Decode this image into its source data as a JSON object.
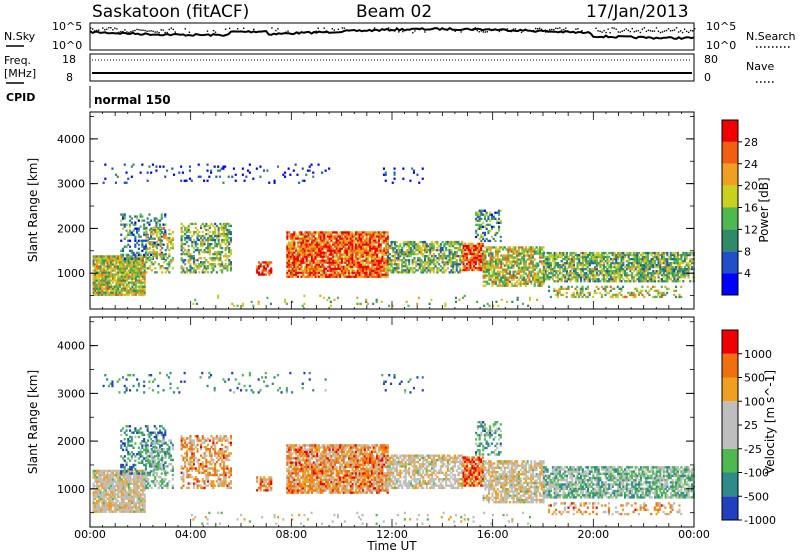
{
  "header": {
    "site": "Saskatoon (fitACF)",
    "beam": "Beam 02",
    "date": "17/Jan/2013"
  },
  "noise_panel": {
    "left_label": "N.Sky",
    "left_ticks": [
      "10^5",
      "10^0"
    ],
    "right_ticks": [
      "10^5",
      "10^0"
    ],
    "right_label": "N.Search"
  },
  "freq_panel": {
    "left_label_line1": "Freq.",
    "left_label_line2": "[MHz]",
    "left_ticks": [
      "18",
      "8"
    ],
    "right_ticks": [
      "80",
      "0"
    ],
    "right_label": "Nave"
  },
  "cpid": {
    "label": "CPID",
    "value": "normal 150"
  },
  "chart_data": [
    {
      "type": "heatmap",
      "name": "power",
      "ylabel": "Slant Range [km]",
      "yticks": [
        "4000",
        "3000",
        "2000",
        "1000"
      ],
      "ylim": [
        200,
        4600
      ],
      "xlim": [
        0,
        24
      ],
      "colorbar": {
        "label": "Power [dB]",
        "ticks": [
          "28",
          "24",
          "20",
          "16",
          "12",
          "8",
          "4"
        ],
        "colors": [
          "#0000ff",
          "#2050c8",
          "#2f8a6a",
          "#4fb84f",
          "#c8d020",
          "#f0a020",
          "#f06010",
          "#f00000"
        ]
      }
    },
    {
      "type": "heatmap",
      "name": "velocity",
      "ylabel": "Slant Range [km]",
      "yticks": [
        "4000",
        "3000",
        "2000",
        "1000"
      ],
      "ylim": [
        200,
        4600
      ],
      "xlim": [
        0,
        24
      ],
      "xticks": [
        "00:00",
        "04:00",
        "08:00",
        "12:00",
        "16:00",
        "20:00",
        "00:00"
      ],
      "xlabel": "Time UT",
      "colorbar": {
        "label": "Velocity [m s^-1]",
        "ticks": [
          "1000",
          "500",
          "100",
          "25",
          "-25",
          "-100",
          "-500",
          "-1000"
        ],
        "colors": [
          "#2040c0",
          "#2f8a8a",
          "#4fb84f",
          "#bebebe",
          "#bebebe",
          "#f0a020",
          "#f07010",
          "#f00000"
        ]
      }
    }
  ]
}
